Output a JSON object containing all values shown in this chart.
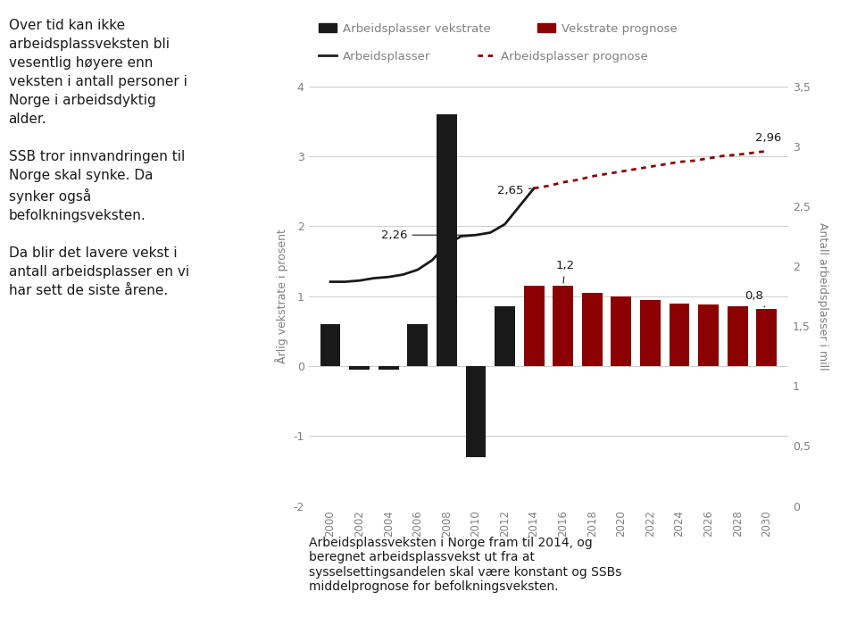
{
  "years_bar": [
    2000,
    2002,
    2004,
    2006,
    2008,
    2010,
    2012,
    2014,
    2016,
    2018,
    2020,
    2022,
    2024,
    2026,
    2028,
    2030
  ],
  "bar_values": [
    0.6,
    -0.05,
    -0.05,
    0.6,
    3.6,
    -1.3,
    0.85,
    1.15,
    1.15,
    1.05,
    1.0,
    0.95,
    0.9,
    0.88,
    0.85,
    0.82
  ],
  "bar_colors_black": [
    2000,
    2002,
    2004,
    2006,
    2008,
    2010,
    2012
  ],
  "bar_colors_red": [
    2014,
    2016,
    2018,
    2020,
    2022,
    2024,
    2026,
    2028,
    2030
  ],
  "line_years": [
    2000,
    2001,
    2002,
    2003,
    2004,
    2005,
    2006,
    2007,
    2008,
    2009,
    2010,
    2011,
    2012,
    2013,
    2014
  ],
  "line_values": [
    1.87,
    1.87,
    1.88,
    1.9,
    1.91,
    1.93,
    1.97,
    2.05,
    2.18,
    2.25,
    2.26,
    2.28,
    2.35,
    2.5,
    2.65
  ],
  "dotted_years": [
    2014,
    2015,
    2016,
    2017,
    2018,
    2019,
    2020,
    2021,
    2022,
    2023,
    2024,
    2025,
    2026,
    2027,
    2028,
    2029,
    2030
  ],
  "dotted_values": [
    2.65,
    2.67,
    2.7,
    2.72,
    2.75,
    2.77,
    2.79,
    2.81,
    2.83,
    2.85,
    2.87,
    2.88,
    2.9,
    2.92,
    2.93,
    2.945,
    2.96
  ],
  "ylim_left": [
    -2,
    4
  ],
  "ylim_right": [
    0,
    3.5
  ],
  "yticks_left": [
    -2,
    -1,
    0,
    1,
    2,
    3,
    4
  ],
  "yticks_right": [
    0,
    0.5,
    1,
    1.5,
    2,
    2.5,
    3,
    3.5
  ],
  "ylabel_left": "Årlig vekstrate i prosent",
  "ylabel_right": "Antall arbeidsplasser i mill",
  "legend_bar_black": "Arbeidsplasser vekstrate",
  "legend_bar_red": "Vekstrate prognose",
  "legend_line_black": "Arbeidsplasser",
  "legend_line_red": "Arbeidsplasser prognose",
  "left_text_lines": [
    "Over tid kan ikke",
    "arbeidsplassveksten bli",
    "vesentlig høyere enn",
    "veksten i antall personer i",
    "Norge i arbeidsdyktig",
    "alder.",
    "",
    "SSB tror innvandringen til",
    "Norge skal synke. Da",
    "synker også",
    "befolkningsveksten.",
    "",
    "Da blir det lavere vekst i",
    "antall arbeidsplasser en vi",
    "har sett de siste årene."
  ],
  "caption": "Arbeidsplassveksten i Norge fram til 2014, og\nberegnet arbeidsplassvekst ut fra at\nsysselsettingsandelen skal være konstant og SSBs\nmiddelprognose for befolkningsveksten.",
  "color_black": "#1a1a1a",
  "color_red": "#8b0000",
  "color_gray_text": "#808080",
  "color_gray_light": "#cccccc"
}
